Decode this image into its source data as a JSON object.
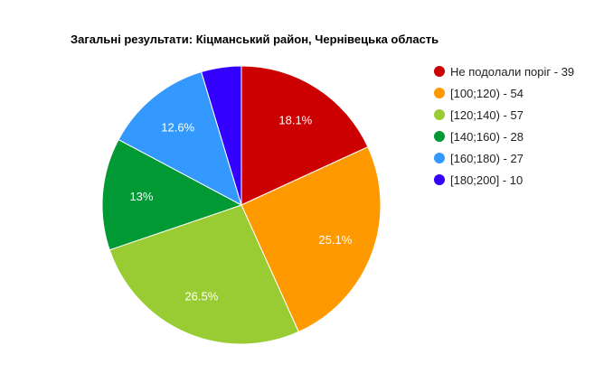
{
  "chart_data": {
    "type": "pie",
    "title": "Загальні результати: Кіцманський район, Чернівецька область",
    "legend_position": "right",
    "slices": [
      {
        "label": "Не подолали поріг - 39",
        "value": 39,
        "percent_label": "18.1%",
        "color": "#cc0000"
      },
      {
        "label": "[100;120) - 54",
        "value": 54,
        "percent_label": "25.1%",
        "color": "#ff9900"
      },
      {
        "label": "[120;140) - 57",
        "value": 57,
        "percent_label": "26.5%",
        "color": "#99cc33"
      },
      {
        "label": "[140;160) - 28",
        "value": 28,
        "percent_label": "13%",
        "color": "#009933"
      },
      {
        "label": "[160;180) - 27",
        "value": 27,
        "percent_label": "12.6%",
        "color": "#3399ff"
      },
      {
        "label": "[180;200] - 10",
        "value": 10,
        "percent_label": "",
        "color": "#3300ff"
      }
    ]
  }
}
